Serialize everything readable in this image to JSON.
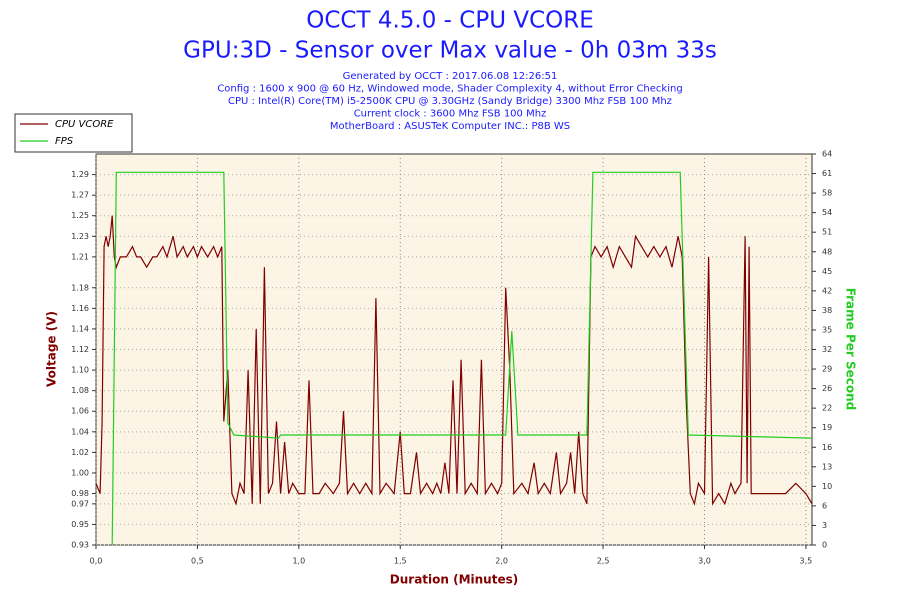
{
  "chart_data": {
    "type": "line",
    "title": "OCCT 4.5.0 - CPU VCORE",
    "subtitle": "GPU:3D - Sensor over Max value - 0h 03m 33s",
    "info": [
      "Generated by OCCT : 2017.06.08 12:26:51",
      "Config : 1600 x 900 @ 60 Hz, Windowed mode, Shader Complexity 4, without Error Checking",
      "CPU : Intel(R) Core(TM) i5-2500K CPU @ 3.30GHz (Sandy Bridge) 3300 Mhz FSB 100 Mhz",
      "Current clock : 3600 Mhz FSB 100 Mhz",
      "MotherBoard : ASUSTeK Computer INC.: P8B WS"
    ],
    "xlabel": "Duration (Minutes)",
    "ylabel": "Voltage (V)",
    "y2label": "Frame Per Second",
    "xlim": [
      0,
      3.53
    ],
    "ylim": [
      0.93,
      1.31
    ],
    "y2lim": [
      0,
      64
    ],
    "xticks": [
      {
        "value": 0,
        "label": "0,0"
      },
      {
        "value": 0.5,
        "label": "0,5"
      },
      {
        "value": 1,
        "label": "1,0"
      },
      {
        "value": 1.5,
        "label": "1,5"
      },
      {
        "value": 2,
        "label": "2,0"
      },
      {
        "value": 2.5,
        "label": "2,5"
      },
      {
        "value": 3,
        "label": "3,0"
      },
      {
        "value": 3.5,
        "label": "3,5"
      }
    ],
    "yticks": [
      0.93,
      0.95,
      0.97,
      0.98,
      {
        "value": 1,
        "label": "1.00"
      },
      1.02,
      1.04,
      1.06,
      1.08,
      {
        "value": 1.1,
        "label": "1.10"
      },
      1.12,
      1.14,
      1.16,
      1.18,
      1.21,
      1.23,
      1.25,
      1.27,
      1.29
    ],
    "y2ticks": [
      0,
      {
        "value": 3.2,
        "label": "3"
      },
      {
        "value": 6.4,
        "label": "6"
      },
      {
        "value": 9.6,
        "label": "10"
      },
      {
        "value": 12.8,
        "label": "13"
      },
      16,
      {
        "value": 19.2,
        "label": "19"
      },
      {
        "value": 22.4,
        "label": "22"
      },
      {
        "value": 25.6,
        "label": "26"
      },
      {
        "value": 28.8,
        "label": "29"
      },
      32,
      {
        "value": 35.2,
        "label": "35"
      },
      {
        "value": 38.4,
        "label": "38"
      },
      {
        "value": 41.6,
        "label": "42"
      },
      {
        "value": 44.8,
        "label": "45"
      },
      48,
      {
        "value": 51.2,
        "label": "51"
      },
      {
        "value": 54.4,
        "label": "54"
      },
      {
        "value": 57.6,
        "label": "58"
      },
      {
        "value": 60.8,
        "label": "61"
      },
      64
    ],
    "grid": true,
    "series": [
      {
        "name": "CPU VCORE",
        "color": "#800000",
        "axis": "y",
        "x": [
          0.0,
          0.02,
          0.03,
          0.04,
          0.05,
          0.06,
          0.07,
          0.08,
          0.09,
          0.1,
          0.12,
          0.15,
          0.18,
          0.2,
          0.22,
          0.25,
          0.28,
          0.3,
          0.33,
          0.35,
          0.38,
          0.4,
          0.43,
          0.45,
          0.48,
          0.5,
          0.52,
          0.55,
          0.58,
          0.6,
          0.62,
          0.63,
          0.65,
          0.67,
          0.69,
          0.71,
          0.73,
          0.75,
          0.77,
          0.79,
          0.81,
          0.83,
          0.85,
          0.87,
          0.89,
          0.91,
          0.93,
          0.95,
          0.97,
          1.0,
          1.03,
          1.05,
          1.07,
          1.1,
          1.13,
          1.17,
          1.2,
          1.22,
          1.24,
          1.27,
          1.3,
          1.33,
          1.36,
          1.38,
          1.4,
          1.43,
          1.47,
          1.5,
          1.52,
          1.55,
          1.58,
          1.6,
          1.63,
          1.66,
          1.68,
          1.7,
          1.72,
          1.74,
          1.76,
          1.78,
          1.8,
          1.82,
          1.85,
          1.88,
          1.9,
          1.92,
          1.95,
          1.98,
          2.0,
          2.02,
          2.04,
          2.06,
          2.1,
          2.13,
          2.16,
          2.18,
          2.21,
          2.24,
          2.27,
          2.29,
          2.32,
          2.34,
          2.36,
          2.38,
          2.4,
          2.42,
          2.44,
          2.46,
          2.49,
          2.52,
          2.55,
          2.58,
          2.61,
          2.64,
          2.66,
          2.69,
          2.72,
          2.75,
          2.78,
          2.81,
          2.84,
          2.87,
          2.89,
          2.91,
          2.93,
          2.95,
          2.97,
          3.0,
          3.02,
          3.04,
          3.07,
          3.1,
          3.13,
          3.15,
          3.18,
          3.2,
          3.21,
          3.22,
          3.23,
          3.25,
          3.3,
          3.35,
          3.4,
          3.45,
          3.5,
          3.53
        ],
        "values": [
          0.99,
          0.98,
          1.05,
          1.22,
          1.23,
          1.22,
          1.23,
          1.25,
          1.21,
          1.2,
          1.21,
          1.21,
          1.22,
          1.21,
          1.21,
          1.2,
          1.21,
          1.21,
          1.22,
          1.21,
          1.23,
          1.21,
          1.22,
          1.21,
          1.22,
          1.21,
          1.22,
          1.21,
          1.22,
          1.21,
          1.22,
          1.05,
          1.1,
          0.98,
          0.97,
          0.99,
          0.98,
          1.1,
          0.97,
          1.14,
          0.97,
          1.2,
          0.98,
          0.99,
          1.05,
          0.98,
          1.03,
          0.98,
          0.99,
          0.98,
          0.98,
          1.09,
          0.98,
          0.98,
          0.99,
          0.98,
          0.99,
          1.06,
          0.98,
          0.99,
          0.98,
          0.99,
          0.98,
          1.17,
          0.98,
          0.99,
          0.98,
          1.04,
          0.98,
          0.98,
          1.02,
          0.98,
          0.99,
          0.98,
          0.99,
          0.98,
          1.01,
          0.98,
          1.09,
          0.98,
          1.11,
          0.98,
          0.99,
          0.98,
          1.11,
          0.98,
          0.99,
          0.98,
          0.99,
          1.18,
          1.1,
          0.98,
          0.99,
          0.98,
          1.01,
          0.98,
          0.99,
          0.98,
          1.02,
          0.98,
          0.99,
          1.02,
          0.98,
          1.04,
          0.98,
          0.97,
          1.21,
          1.22,
          1.21,
          1.22,
          1.2,
          1.22,
          1.21,
          1.2,
          1.23,
          1.22,
          1.21,
          1.22,
          1.21,
          1.22,
          1.2,
          1.23,
          1.21,
          1.07,
          0.98,
          0.97,
          0.99,
          0.98,
          1.21,
          0.97,
          0.98,
          0.97,
          0.99,
          0.98,
          0.99,
          1.23,
          0.99,
          1.22,
          0.98,
          0.98,
          0.98,
          0.98,
          0.98,
          0.99,
          0.98,
          0.97
        ]
      },
      {
        "name": "FPS",
        "color": "#22cc22",
        "axis": "y2",
        "x": [
          0.08,
          0.1,
          0.63,
          0.65,
          0.68,
          0.9,
          0.91,
          2.02,
          2.05,
          2.08,
          2.42,
          2.45,
          2.88,
          2.92,
          3.53
        ],
        "values": [
          0,
          61,
          61,
          20,
          18,
          17.5,
          18,
          18,
          35,
          18,
          18,
          61,
          61,
          18,
          17.5
        ]
      }
    ]
  }
}
